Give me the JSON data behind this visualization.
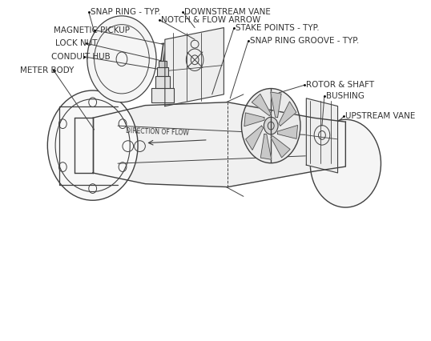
{
  "title": "",
  "background_color": "#ffffff",
  "line_color": "#404040",
  "text_color": "#333333",
  "font_size": 7.5,
  "labels": {
    "magnetic_pickup": "MAGNETIC PICKUP",
    "lock_nut": "LOCK NUT",
    "conduit_hub": "CONDUIT HUB",
    "meter_body": "METER BODY",
    "stake_points": "STAKE POINTS - TYP.",
    "snap_ring_groove": "SNAP RING GROOVE - TYP.",
    "upstream_vane": "UPSTREAM VANE",
    "bushing": "BUSHING",
    "rotor_shaft": "ROTOR & SHAFT",
    "downstream_vane": "DOWNSTREAM VANE",
    "notch_flow": "NOTCH & FLOW ARROW",
    "snap_ring": "SNAP RING - TYP.",
    "direction_flow": "DIRECTION OF FLOW"
  }
}
